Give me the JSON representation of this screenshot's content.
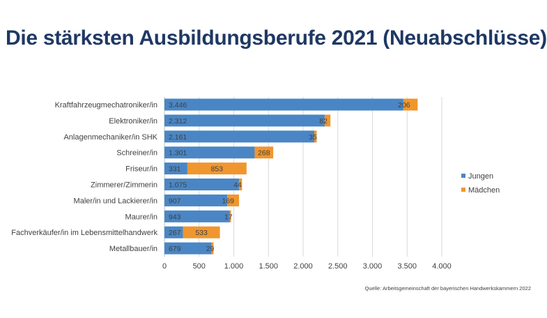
{
  "page": {
    "title": "Die stärksten Ausbildungsberufe 2021 (Neuabschlüsse)",
    "source": "Quelle: Arbeitsgemeinschaft der bayerischen Handwerkskammern 2022"
  },
  "colors": {
    "title": "#1f3864",
    "jungen": "#4a86c5",
    "maedchen": "#f0962e",
    "grid": "#d9d9d9",
    "text": "#404040"
  },
  "chart_data": {
    "type": "bar",
    "orientation": "horizontal",
    "stacked": true,
    "categories": [
      "Kraftfahrzeugmechatroniker/in",
      "Elektroniker/in",
      "Anlagenmechaniker/in SHK",
      "Schreiner/in",
      "Friseur/in",
      "Zimmerer/Zimmerin",
      "Maler/in und Lackierer/in",
      "Maurer/in",
      "Fachverkäufer/in im Lebensmittelhandwerk",
      "Metallbauer/in"
    ],
    "series": [
      {
        "name": "Jungen",
        "values": [
          3446,
          2312,
          2161,
          1301,
          331,
          1075,
          907,
          943,
          267,
          679
        ],
        "labels": [
          "3.446",
          "2.312",
          "2.161",
          "1.301",
          "331",
          "1.075",
          "907",
          "943",
          "267",
          "679"
        ]
      },
      {
        "name": "Mädchen",
        "values": [
          206,
          82,
          35,
          268,
          853,
          44,
          169,
          17,
          533,
          29
        ],
        "labels": [
          "206",
          "82",
          "35",
          "268",
          "853",
          "44",
          "169",
          "17",
          "533",
          "29"
        ]
      }
    ],
    "xlim": [
      0,
      4000
    ],
    "xticks": [
      0,
      500,
      1000,
      1500,
      2000,
      2500,
      3000,
      3500,
      4000
    ],
    "xtick_labels": [
      "0",
      "500",
      "1.000",
      "1.500",
      "2.000",
      "2.500",
      "3.000",
      "3.500",
      "4.000"
    ],
    "grid": true,
    "legend_position": "right"
  }
}
